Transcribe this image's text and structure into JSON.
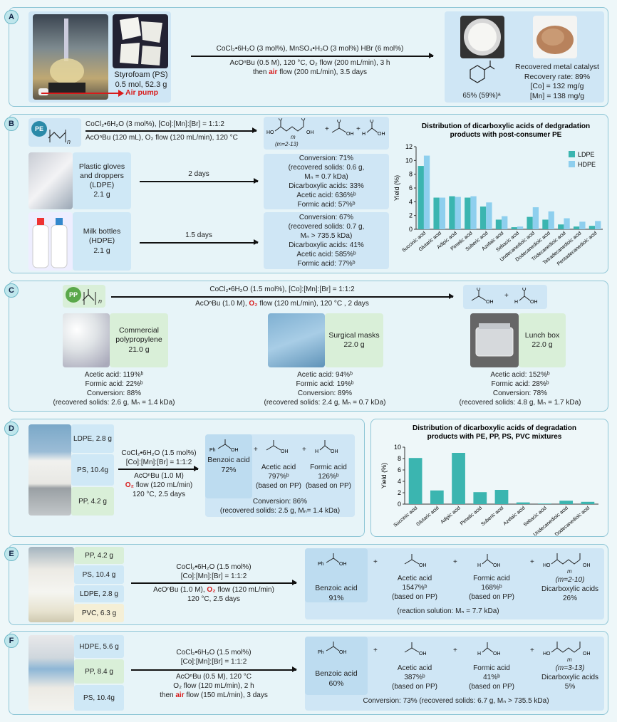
{
  "panelA": {
    "tag": "A",
    "substrate": [
      "Styrofoam (PS)",
      "0.5 mol, 52.3 g"
    ],
    "air_pump": "Air pump",
    "cond_top": "CoCl₂•6H₂O (3 mol%), MnSO₄•H₂O (3 mol%) HBr (6 mol%)",
    "cond_bottom": "AcOⁿBu (0.5 M), 120 °C, O₂ flow (200 mL/min), 3 h",
    "cond_bottom2_pre": "then",
    "cond_bottom2_air": "air",
    "cond_bottom2_post": "flow (200 mL/min), 3.5 days",
    "yield": "65% (59%)ᵃ",
    "catalyst": [
      "Recovered metal catalyst",
      "Recovery rate: 89%",
      "[Co] = 132 mg/g",
      "[Mn] = 138 mg/g"
    ]
  },
  "panelB": {
    "tag": "B",
    "pe": "PE",
    "n": "n",
    "cond_top": "CoCl₂•6H₂O (3 mol%), [Co]:[Mn]:[Br] = 1:1:2",
    "cond_bottom": "AcOⁿBu (120 mL), O₂ flow (120 mL/min), 120 °C",
    "m_label": "(m=2-13)",
    "m": "m",
    "plus": "+",
    "s1": [
      "Plastic gloves",
      "and droppers",
      "(LDPE)",
      "2.1 g"
    ],
    "s1_time": "2 days",
    "s1_res": [
      "Conversion: 71%",
      "(recovered solids: 0.6 g,",
      "Mₙ = 0.7 kDa)",
      "Dicarboxylic acids: 33%",
      "Acetic acid: 636%ᵇ",
      "Formic acid: 57%ᵇ"
    ],
    "s2": [
      "Milk bottles",
      "(HDPE)",
      "2.1 g"
    ],
    "s2_time": "1.5 days",
    "s2_res": [
      "Conversion: 67%",
      "(recovered solids: 0.7 g,",
      "Mₙ > 735.5 kDa)",
      "Dicarboxylic acids: 41%",
      "Acetic acid: 585%ᵇ",
      "Formic acid: 77%ᵇ"
    ]
  },
  "chart_data": [
    {
      "type": "bar",
      "title": "Distribution of dicarboxylic acids of dedgradation products with post-consumer PE",
      "ylabel": "Yield (%)",
      "xlabel": "",
      "ylim": [
        0,
        12
      ],
      "yticks": [
        0,
        2,
        4,
        6,
        8,
        10,
        12
      ],
      "legend": "top-right",
      "categories": [
        "Succinic acid",
        "Glutaric acid",
        "Adipic acid",
        "Pimelic acid",
        "Suberic acid",
        "Azelaic acid",
        "Sebacic acid",
        "Undecanedioic acid",
        "Dodecanedioic acid",
        "Tridecanedioic acid",
        "Tetradecanedioic acid",
        "Pentadecanedioic acid"
      ],
      "series": [
        {
          "name": "LDPE",
          "color": "#3bb5b0",
          "values": [
            9.2,
            4.6,
            4.8,
            4.6,
            3.3,
            1.4,
            0.3,
            1.8,
            1.4,
            0.7,
            0.4,
            0.5
          ]
        },
        {
          "name": "HDPE",
          "color": "#8ecfee",
          "values": [
            10.7,
            4.6,
            4.7,
            4.8,
            3.9,
            1.9,
            0.4,
            3.2,
            2.6,
            1.6,
            1.1,
            1.2
          ]
        }
      ]
    },
    {
      "type": "bar",
      "title": "Distribution of dicarboxylic acids of degradation products with PE, PP, PS, PVC mixtures",
      "ylabel": "Yield (%)",
      "xlabel": "",
      "ylim": [
        0,
        10
      ],
      "yticks": [
        0,
        2,
        4,
        6,
        8,
        10
      ],
      "categories": [
        "Succinic acid",
        "Glutaric acid",
        "Adipic acid",
        "Pimelic acid",
        "Suberic acid",
        "Azelaic acid",
        "Sebacic acid",
        "Undecanedioic acid",
        "Dodecanedioic acid"
      ],
      "series": [
        {
          "color": "#3bb5b0",
          "values": [
            8.1,
            2.4,
            9.0,
            2.1,
            2.5,
            0.3,
            0.1,
            0.6,
            0.4
          ]
        }
      ]
    }
  ],
  "panelC": {
    "tag": "C",
    "pp": "PP",
    "n": "n",
    "cond_top": "CoCl₂•6H₂O (1.5 mol%), [Co]:[Mn]:[Br] = 1:1:2",
    "cond_bottom_pre": "AcOⁿBu (1.0 M),",
    "cond_bottom_o2": "O₂",
    "cond_bottom_post": "flow (120 mL/min), 120 °C , 2 days",
    "plus": "+",
    "s1": [
      "Commercial",
      "polypropylene",
      "21.0 g"
    ],
    "s1_res": [
      "Acetic acid: 119%ᵇ",
      "Formic acid: 22%ᵇ",
      "Conversion: 88%",
      "(recovered solids: 2.6 g, Mₙ = 1.4 kDa)"
    ],
    "s2": [
      "Surgical masks",
      "22.0 g"
    ],
    "s2_res": [
      "Acetic acid: 94%ᵇ",
      "Formic acid: 19%ᵇ",
      "Conversion: 89%",
      "(recovered solids: 2.4 g, Mₙ = 0.7 kDa)"
    ],
    "s3": [
      "Lunch box",
      "22.0 g"
    ],
    "s3_res": [
      "Acetic acid: 152%ᵇ",
      "Formic acid: 28%ᵇ",
      "Conversion: 78%",
      "(recovered solids: 4.8 g, Mₙ = 1.7 kDa)"
    ]
  },
  "panelD": {
    "tag": "D",
    "items": [
      "LDPE, 2.8 g",
      "PS, 10.4g",
      "PP, 4.2 g"
    ],
    "cond": [
      "CoCl₂•6H₂O (1.5 mol%)",
      "[Co]:[Mn]:[Br] = 1:1:2",
      "AcOⁿBu (1.0 M)",
      "flow (120 mL/min)",
      "120 °C, 2.5 days"
    ],
    "o2": "O₂",
    "ph": "Ph",
    "plus": "+",
    "benzoic": [
      "Benzoic acid",
      "72%"
    ],
    "acetic": [
      "Acetic acid",
      "797%ᵇ",
      "(based on PP)"
    ],
    "formic": [
      "Formic acid",
      "126%ᵇ",
      "(based on PP)"
    ],
    "conv": [
      "Conversion: 86%",
      "(recovered solids: 2.5 g, Mₙ= 1.4 kDa)"
    ]
  },
  "panelE": {
    "tag": "E",
    "items": [
      "PP, 4.2 g",
      "PS, 10.4 g",
      "LDPE, 2.8 g",
      "PVC, 6.3 g"
    ],
    "cond_top": [
      "CoCl₂•6H₂O (1.5 mol%)",
      "[Co]:[Mn]:[Br] = 1:1:2"
    ],
    "cond_bottom_pre": "AcOⁿBu (1.0 M),",
    "o2": "O₂",
    "cond_bottom_post": "flow (120 mL/min)",
    "cond_bottom2": "120 °C, 2.5 days",
    "ph": "Ph",
    "plus": "+",
    "m": "m",
    "benzoic": [
      "Benzoic acid",
      "91%"
    ],
    "acetic": [
      "Acetic acid",
      "1547%ᵇ",
      "(based on PP)"
    ],
    "formic": [
      "Formic acid",
      "168%ᵇ",
      "(based on PP)"
    ],
    "dicarb": [
      "(m=2-10)",
      "Dicarboxylic acids",
      "26%"
    ],
    "note": "(reaction solution: Mₙ = 7.7 kDa)"
  },
  "panelF": {
    "tag": "F",
    "items": [
      "HDPE, 5.6 g",
      "PP, 8.4 g",
      "PS, 10.4g"
    ],
    "cond_top": [
      "CoCl₂•6H₂O (1.5 mol%)",
      "[Co]:[Mn]:[Br] = 1:1:2"
    ],
    "cond_bottom": "AcOⁿBu (0.5 M), 120 °C",
    "o2_line": "flow (120 mL/min), 2 h",
    "o2": "O₂",
    "air_pre": "then",
    "air": "air",
    "air_post": "flow (150 mL/min), 3 days",
    "ph": "Ph",
    "plus": "+",
    "m": "m",
    "benzoic": [
      "Benzoic acid",
      "60%"
    ],
    "acetic": [
      "Acetic acid",
      "387%ᵇ",
      "(based on PP)"
    ],
    "formic": [
      "Formic acid",
      "41%ᵇ",
      "(based on PP)"
    ],
    "dicarb": [
      "(m=3-13)",
      "Dicarboxylic acids",
      "5%"
    ],
    "conv": "Conversion: 73% (recovered solids: 6.7 g, Mₙ > 735.5 kDa)"
  }
}
